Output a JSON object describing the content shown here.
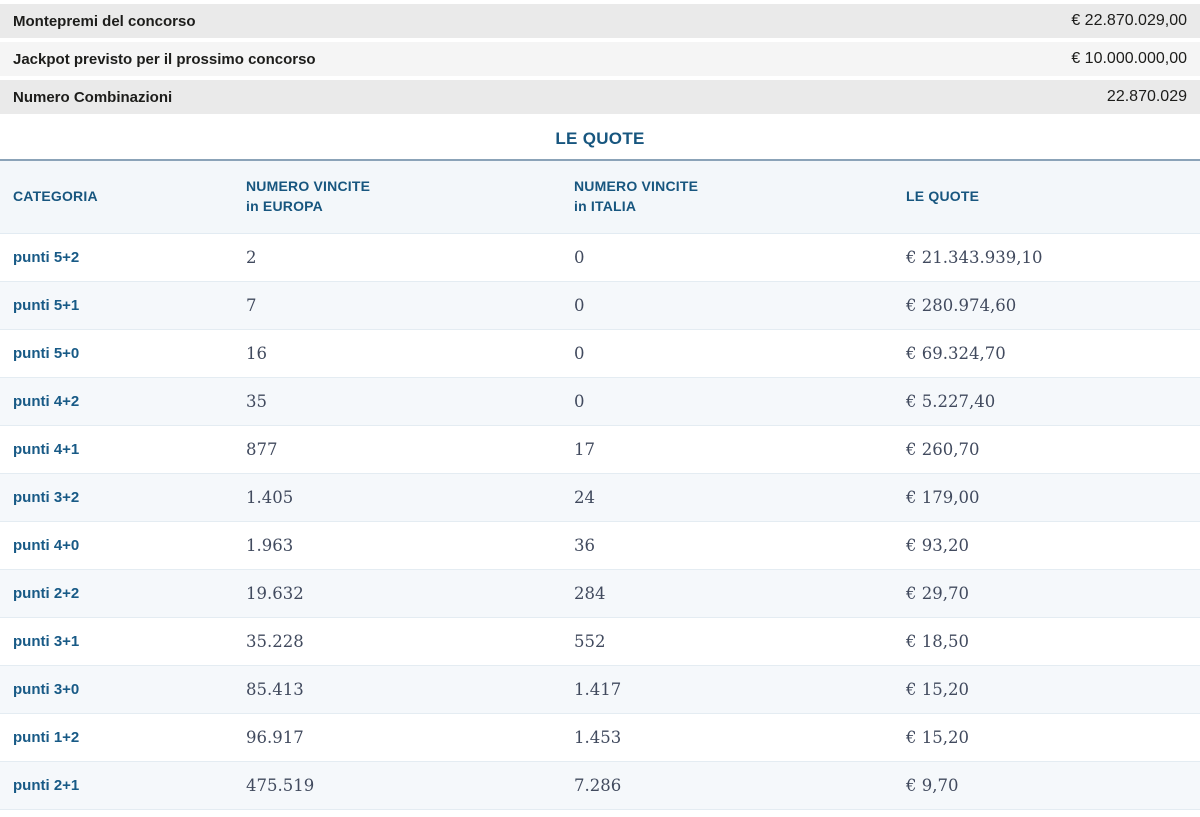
{
  "summary": {
    "rows": [
      {
        "label": "Montepremi del concorso",
        "value": "€ 22.870.029,00"
      },
      {
        "label": "Jackpot previsto per il prossimo concorso",
        "value": "€ 10.000.000,00"
      },
      {
        "label": "Numero Combinazioni",
        "value": "22.870.029"
      }
    ]
  },
  "section_title": "LE QUOTE",
  "table": {
    "columns": [
      {
        "line1": "CATEGORIA"
      },
      {
        "line1": "NUMERO VINCITE",
        "line2": "in EUROPA"
      },
      {
        "line1": "NUMERO VINCITE",
        "line2": "in ITALIA"
      },
      {
        "line1": "LE QUOTE"
      }
    ],
    "rows": [
      {
        "category": "punti 5+2",
        "europe": "2",
        "italy": "0",
        "quote": "€ 21.343.939,10"
      },
      {
        "category": "punti 5+1",
        "europe": "7",
        "italy": "0",
        "quote": "€ 280.974,60"
      },
      {
        "category": "punti 5+0",
        "europe": "16",
        "italy": "0",
        "quote": "€ 69.324,70"
      },
      {
        "category": "punti 4+2",
        "europe": "35",
        "italy": "0",
        "quote": "€ 5.227,40"
      },
      {
        "category": "punti 4+1",
        "europe": "877",
        "italy": "17",
        "quote": "€ 260,70"
      },
      {
        "category": "punti 3+2",
        "europe": "1.405",
        "italy": "24",
        "quote": "€ 179,00"
      },
      {
        "category": "punti 4+0",
        "europe": "1.963",
        "italy": "36",
        "quote": "€ 93,20"
      },
      {
        "category": "punti 2+2",
        "europe": "19.632",
        "italy": "284",
        "quote": "€ 29,70"
      },
      {
        "category": "punti 3+1",
        "europe": "35.228",
        "italy": "552",
        "quote": "€ 18,50"
      },
      {
        "category": "punti 3+0",
        "europe": "85.413",
        "italy": "1.417",
        "quote": "€ 15,20"
      },
      {
        "category": "punti 1+2",
        "europe": "96.917",
        "italy": "1.453",
        "quote": "€ 15,20"
      },
      {
        "category": "punti 2+1",
        "europe": "475.519",
        "italy": "7.286",
        "quote": "€ 9,70"
      }
    ]
  },
  "colors": {
    "accent_blue": "#17567F",
    "category_blue": "#185A86",
    "table_top_border": "#8BA3B8",
    "header_bg": "#F3F7FA",
    "row_alt_bg": "#F5F8FB",
    "strip_bg": "#EAEAEA",
    "strip_alt_bg": "#F5F5F5",
    "number_text": "#414A5E"
  }
}
